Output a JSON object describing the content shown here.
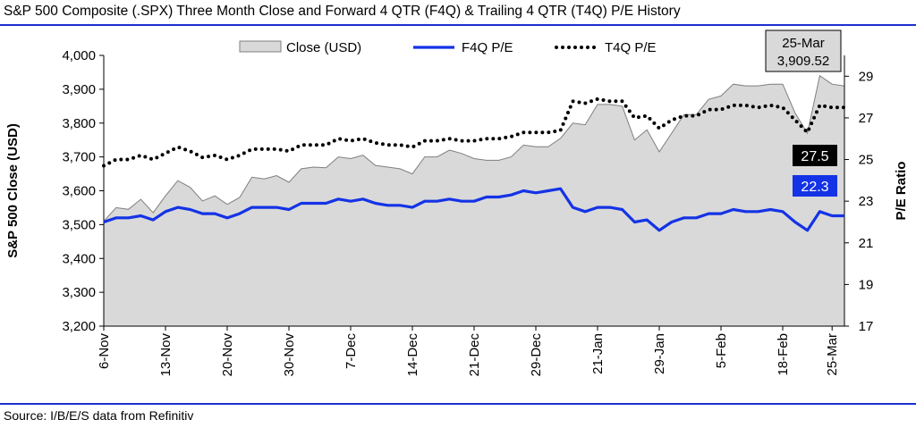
{
  "title": "S&P 500 Composite (.SPX) Three Month Close and Forward 4 QTR (F4Q) & Trailing 4 QTR (T4Q) P/E History",
  "source": "Source: I/B/E/S data from Refinitiv",
  "colors": {
    "rule": "#1c2fd1",
    "area_fill": "#d9d9d9",
    "area_line": "#7f7f7f",
    "f4q_line": "#1433e6",
    "t4q_line": "#000000",
    "t4q_badge": "#000000",
    "f4q_badge": "#1433e6"
  },
  "chart_data": {
    "type": "line",
    "title": "S&P 500 Composite (.SPX) Three Month Close and Forward 4 QTR (F4Q) & Trailing 4 QTR (T4Q) P/E History",
    "ylabel": "S&P 500 Close (USD)",
    "y2label": "P/E Ratio",
    "ylim": [
      3200,
      4000
    ],
    "y_ticks": [
      "3,200",
      "3,300",
      "3,400",
      "3,500",
      "3,600",
      "3,700",
      "3,800",
      "3,900",
      "4,000"
    ],
    "y2lim": [
      17,
      30
    ],
    "y2_ticks": [
      "17",
      "19",
      "21",
      "23",
      "25",
      "27",
      "29"
    ],
    "x_tick_labels": [
      "6-Nov",
      "13-Nov",
      "20-Nov",
      "30-Nov",
      "7-Dec",
      "14-Dec",
      "21-Dec",
      "29-Dec",
      "21-Jan",
      "29-Jan",
      "5-Feb",
      "18-Feb",
      "25-Mar"
    ],
    "x_tick_index": [
      0,
      5,
      10,
      15,
      20,
      25,
      30,
      35,
      40,
      45,
      50,
      55,
      59
    ],
    "grid": false,
    "legend_position": "top",
    "legend": [
      "Close (USD)",
      "F4Q P/E",
      "T4Q P/E"
    ],
    "series": [
      {
        "name": "Close (USD)",
        "axis": "left",
        "style": "area",
        "values": [
          3510,
          3550,
          3545,
          3575,
          3535,
          3585,
          3630,
          3610,
          3570,
          3585,
          3560,
          3580,
          3640,
          3635,
          3645,
          3625,
          3665,
          3670,
          3668,
          3700,
          3695,
          3705,
          3675,
          3670,
          3665,
          3650,
          3700,
          3700,
          3720,
          3710,
          3695,
          3690,
          3690,
          3700,
          3735,
          3730,
          3730,
          3755,
          3800,
          3795,
          3855,
          3855,
          3850,
          3750,
          3780,
          3715,
          3770,
          3825,
          3825,
          3870,
          3880,
          3915,
          3910,
          3910,
          3915,
          3915,
          3830,
          3770,
          3940,
          3915,
          3909.52
        ]
      },
      {
        "name": "F4Q P/E",
        "axis": "right",
        "style": "solid",
        "values": [
          22.0,
          22.2,
          22.2,
          22.3,
          22.1,
          22.5,
          22.7,
          22.6,
          22.4,
          22.4,
          22.2,
          22.4,
          22.7,
          22.7,
          22.7,
          22.6,
          22.9,
          22.9,
          22.9,
          23.1,
          23.0,
          23.1,
          22.9,
          22.8,
          22.8,
          22.7,
          23.0,
          23.0,
          23.1,
          23.0,
          23.0,
          23.2,
          23.2,
          23.3,
          23.5,
          23.4,
          23.5,
          23.6,
          22.7,
          22.5,
          22.7,
          22.7,
          22.6,
          22.0,
          22.1,
          21.6,
          22.0,
          22.2,
          22.2,
          22.4,
          22.4,
          22.6,
          22.5,
          22.5,
          22.6,
          22.5,
          22.0,
          21.6,
          22.5,
          22.3,
          22.3
        ]
      },
      {
        "name": "T4Q P/E",
        "axis": "right",
        "style": "dotted",
        "values": [
          24.7,
          25.0,
          25.0,
          25.2,
          25.0,
          25.3,
          25.6,
          25.4,
          25.1,
          25.2,
          25.0,
          25.2,
          25.5,
          25.5,
          25.5,
          25.4,
          25.7,
          25.7,
          25.7,
          26.0,
          25.9,
          26.0,
          25.8,
          25.7,
          25.7,
          25.6,
          25.9,
          25.9,
          26.0,
          25.9,
          25.9,
          26.0,
          26.0,
          26.1,
          26.3,
          26.3,
          26.3,
          26.4,
          27.8,
          27.7,
          27.9,
          27.8,
          27.8,
          27.0,
          27.1,
          26.5,
          26.9,
          27.1,
          27.1,
          27.4,
          27.4,
          27.6,
          27.6,
          27.5,
          27.6,
          27.5,
          26.9,
          26.3,
          27.6,
          27.5,
          27.5
        ]
      }
    ],
    "annotations": {
      "close_callout_date": "25-Mar",
      "close_callout_value": "3,909.52",
      "t4q_last_label": "27.5",
      "f4q_last_label": "22.3"
    }
  }
}
